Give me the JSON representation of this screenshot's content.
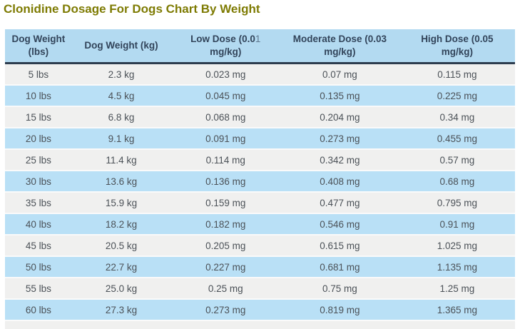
{
  "page": {
    "title": "Clonidine Dosage For Dogs Chart By Weight"
  },
  "colors": {
    "title_text": "#7e7b03",
    "header_background": "#b3daf1",
    "header_text": "#32445a",
    "header_divider": "#2d3c4e",
    "row_gray": "#f0f0ef",
    "row_blue": "#b9e0f6",
    "body_text": "#4b5157"
  },
  "header_segments": [
    [
      {
        "text": "Dog Weight (lbs)",
        "light": false
      }
    ],
    [
      {
        "text": "Dog Weight (kg)",
        "light": false
      }
    ],
    [
      {
        "text": "Low Dose (0.0",
        "light": false
      },
      {
        "text": "1",
        "light": true
      },
      {
        "text": " mg/kg)",
        "light": false
      }
    ],
    [
      {
        "text": "Moderate Dose (0.03 mg/kg)",
        "light": false
      }
    ],
    [
      {
        "text": "High Dose (0.05 mg/kg)",
        "light": false
      }
    ]
  ],
  "column_widths_percent": [
    13.1,
    19.4,
    21.5,
    23.3,
    22.7
  ],
  "chart_data": {
    "type": "table",
    "title": "Clonidine Dosage For Dogs Chart By Weight",
    "columns": [
      "Dog Weight (lbs)",
      "Dog Weight (kg)",
      "Low Dose (0.01 mg/kg)",
      "Moderate Dose (0.03 mg/kg)",
      "High Dose (0.05 mg/kg)"
    ],
    "rows": [
      [
        "5 lbs",
        "2.3 kg",
        "0.023 mg",
        "0.07 mg",
        "0.115 mg"
      ],
      [
        "10 lbs",
        "4.5 kg",
        "0.045 mg",
        "0.135 mg",
        "0.225 mg"
      ],
      [
        "15 lbs",
        "6.8 kg",
        "0.068 mg",
        "0.204 mg",
        "0.34 mg"
      ],
      [
        "20 lbs",
        "9.1 kg",
        "0.091 mg",
        "0.273 mg",
        "0.455 mg"
      ],
      [
        "25 lbs",
        "11.4 kg",
        "0.114 mg",
        "0.342 mg",
        "0.57 mg"
      ],
      [
        "30 lbs",
        "13.6 kg",
        "0.136 mg",
        "0.408 mg",
        "0.68 mg"
      ],
      [
        "35 lbs",
        "15.9 kg",
        "0.159 mg",
        "0.477 mg",
        "0.795 mg"
      ],
      [
        "40 lbs",
        "18.2 kg",
        "0.182 mg",
        "0.546 mg",
        "0.91 mg"
      ],
      [
        "45 lbs",
        "20.5 kg",
        "0.205 mg",
        "0.615 mg",
        "1.025 mg"
      ],
      [
        "50 lbs",
        "22.7 kg",
        "0.227 mg",
        "0.681 mg",
        "1.135 mg"
      ],
      [
        "55 lbs",
        "25.0 kg",
        "0.25 mg",
        "0.75 mg",
        "1.25 mg"
      ],
      [
        "60 lbs",
        "27.3 kg",
        "0.273 mg",
        "0.819 mg",
        "1.365 mg"
      ]
    ]
  }
}
